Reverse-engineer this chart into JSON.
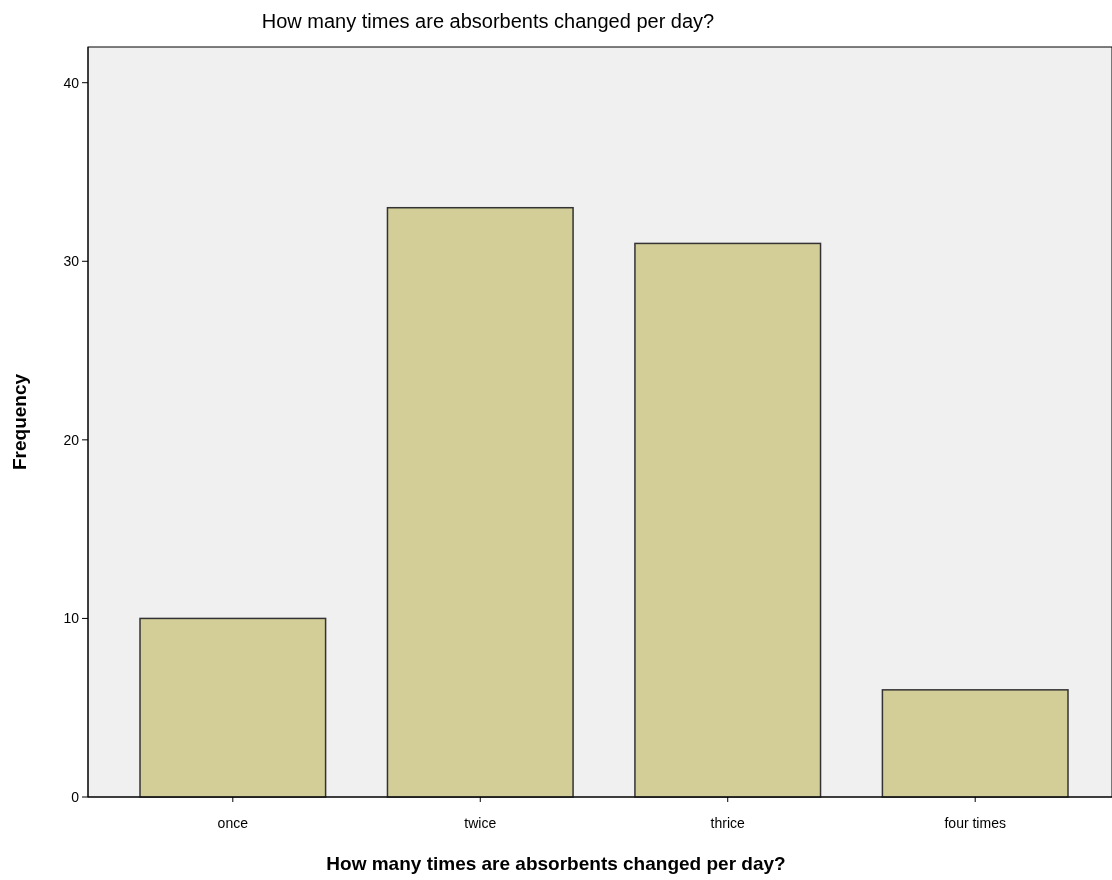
{
  "chart_data": {
    "type": "bar",
    "title": "How many times are absorbents changed per day?",
    "xlabel": "How many times are absorbents changed per day?",
    "ylabel": "Frequency",
    "categories": [
      "once",
      "twice",
      "thrice",
      "four times"
    ],
    "values": [
      10,
      33,
      31,
      6
    ],
    "color": "#d3ce97",
    "ylim": [
      0,
      42
    ],
    "yticks": [
      0,
      10,
      20,
      30,
      40
    ],
    "grid": false
  }
}
